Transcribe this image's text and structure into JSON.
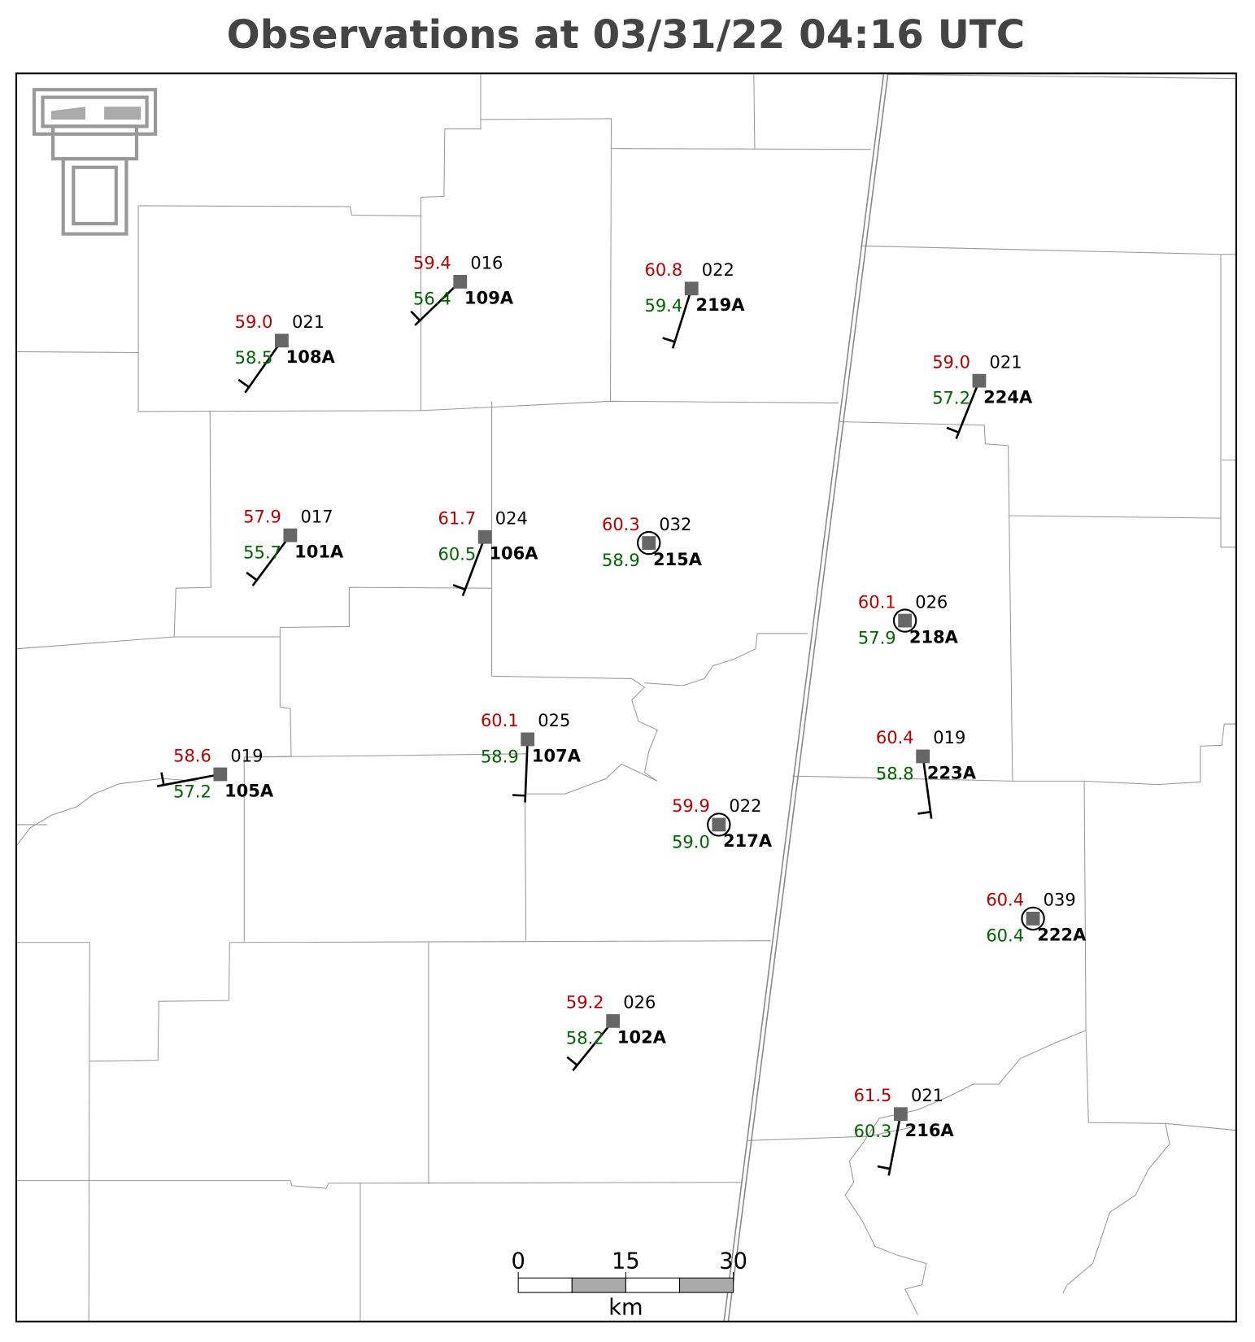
{
  "title": "Observations at 03/31/22 04:16 UTC",
  "stations": [
    {
      "id": "109A",
      "temperature": "59.4",
      "dewpoint": "56.4",
      "code": "016"
    },
    {
      "id": "219A",
      "temperature": "60.8",
      "dewpoint": "59.4",
      "code": "022"
    },
    {
      "id": "108A",
      "temperature": "59.0",
      "dewpoint": "58.5",
      "code": "021"
    },
    {
      "id": "224A",
      "temperature": "59.0",
      "dewpoint": "57.2",
      "code": "021"
    },
    {
      "id": "101A",
      "temperature": "57.9",
      "dewpoint": "55.7",
      "code": "017"
    },
    {
      "id": "106A",
      "temperature": "61.7",
      "dewpoint": "60.5",
      "code": "024"
    },
    {
      "id": "215A",
      "temperature": "60.3",
      "dewpoint": "58.9",
      "code": "032"
    },
    {
      "id": "218A",
      "temperature": "60.1",
      "dewpoint": "57.9",
      "code": "026"
    },
    {
      "id": "107A",
      "temperature": "60.1",
      "dewpoint": "58.9",
      "code": "025"
    },
    {
      "id": "105A",
      "temperature": "58.6",
      "dewpoint": "57.2",
      "code": "019"
    },
    {
      "id": "223A",
      "temperature": "60.4",
      "dewpoint": "58.8",
      "code": "019"
    },
    {
      "id": "217A",
      "temperature": "59.9",
      "dewpoint": "59.0",
      "code": "022"
    },
    {
      "id": "222A",
      "temperature": "60.4",
      "dewpoint": "60.4",
      "code": "039"
    },
    {
      "id": "102A",
      "temperature": "59.2",
      "dewpoint": "58.2",
      "code": "026"
    },
    {
      "id": "216A",
      "temperature": "61.5",
      "dewpoint": "60.3",
      "code": "021"
    }
  ],
  "scale_bar": {
    "ticks": [
      0,
      15,
      30
    ],
    "unit": "km"
  }
}
